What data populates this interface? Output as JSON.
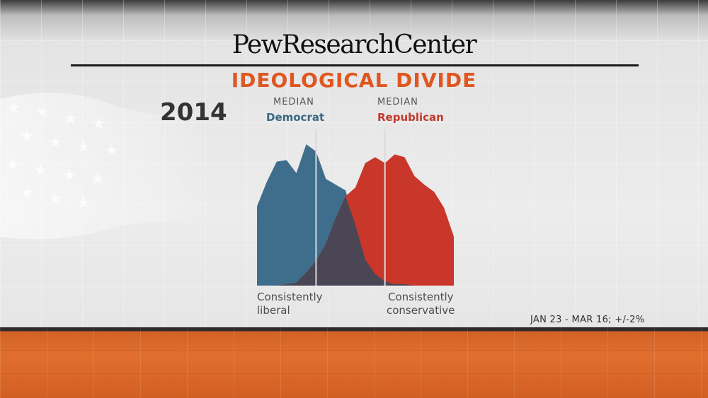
{
  "brand": "PewResearchCenter",
  "title": "IDEOLOGICAL DIVIDE",
  "year": "2014",
  "medians": {
    "small_label": "MEDIAN",
    "democrat_label": "Democrat",
    "republican_label": "Republican"
  },
  "axis": {
    "left_line1": "Consistently",
    "left_line2": "liberal",
    "right_line1": "Consistently",
    "right_line2": "conservative"
  },
  "footnote": "JAN 23 - MAR 16; +/-2%",
  "colors": {
    "democrat": "#3e6e8c",
    "republican": "#c8372a",
    "overlap": "#4a4655",
    "title": "#e0561f",
    "band": "#dc6a2c"
  },
  "chart_data": {
    "type": "area",
    "x": [
      0,
      1,
      2,
      3,
      4,
      5,
      6,
      7,
      8,
      9,
      10,
      11,
      12,
      13,
      14,
      15,
      16,
      17,
      18,
      19,
      20
    ],
    "ylim": [
      0,
      100
    ],
    "series": [
      {
        "name": "Democrat",
        "values": [
          55,
          72,
          86,
          87,
          78,
          98,
          93,
          74,
          70,
          66,
          42,
          18,
          8,
          3,
          1,
          1,
          0,
          0,
          0,
          0,
          0
        ]
      },
      {
        "name": "Republican",
        "values": [
          0,
          0,
          0,
          1,
          2,
          9,
          17,
          29,
          47,
          62,
          68,
          85,
          89,
          85,
          91,
          89,
          76,
          70,
          65,
          54,
          34
        ]
      }
    ],
    "median_democrat_x": 6,
    "median_republican_x": 13
  }
}
